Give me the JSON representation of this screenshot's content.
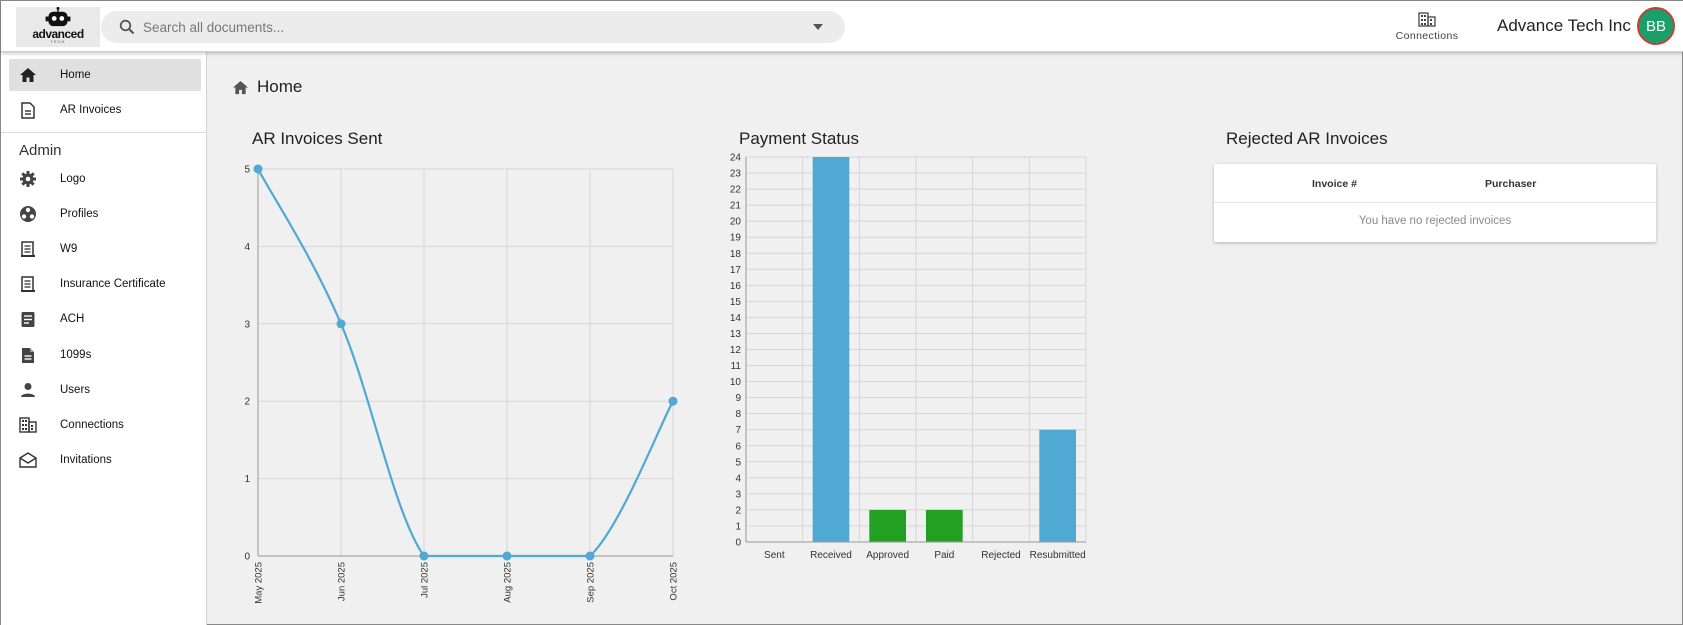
{
  "header": {
    "logo_text": "advanced",
    "logo_sub": "TECH",
    "search_placeholder": "Search all documents...",
    "connections_label": "Connections",
    "company": "Advance Tech Inc",
    "avatar_initials": "BB"
  },
  "sidebar": {
    "items": [
      {
        "label": "Home",
        "icon": "home-icon",
        "active": true
      },
      {
        "label": "AR Invoices",
        "icon": "document-icon",
        "active": false
      }
    ],
    "admin_heading": "Admin",
    "admin_items": [
      {
        "label": "Logo",
        "icon": "gear-icon"
      },
      {
        "label": "Profiles",
        "icon": "profiles-icon"
      },
      {
        "label": "W9",
        "icon": "form-icon"
      },
      {
        "label": "Insurance Certificate",
        "icon": "certificate-icon"
      },
      {
        "label": "ACH",
        "icon": "ach-document-icon"
      },
      {
        "label": "1099s",
        "icon": "1099-document-icon"
      },
      {
        "label": "Users",
        "icon": "user-icon"
      },
      {
        "label": "Connections",
        "icon": "building-icon"
      },
      {
        "label": "Invitations",
        "icon": "envelope-icon"
      }
    ]
  },
  "breadcrumb": {
    "label": "Home"
  },
  "cards": {
    "ar_title": "AR Invoices Sent",
    "payment_title": "Payment Status",
    "rejected_title": "Rejected AR Invoices"
  },
  "rejected_table": {
    "columns": [
      "Invoice #",
      "Purchaser"
    ],
    "empty_text": "You have no rejected invoices"
  },
  "chart_data": [
    {
      "type": "line",
      "title": "AR Invoices Sent",
      "x": [
        "May 2025",
        "Jun 2025",
        "Jul 2025",
        "Aug 2025",
        "Sep 2025",
        "Oct 2025"
      ],
      "series": [
        {
          "values": [
            5,
            3,
            0,
            0,
            0,
            2
          ],
          "color": "#4fa9d2"
        }
      ],
      "yticks": [
        0,
        1,
        2,
        3,
        4,
        5
      ],
      "ylim": [
        0,
        5
      ],
      "grid": true
    },
    {
      "type": "bar",
      "title": "Payment Status",
      "categories": [
        "Sent",
        "Received",
        "Approved",
        "Paid",
        "Rejected",
        "Resubmitted"
      ],
      "values": [
        0,
        24,
        2,
        2,
        0,
        7
      ],
      "colors": [
        "#4fa9d2",
        "#4fa9d2",
        "#22a022",
        "#22a022",
        "#4fa9d2",
        "#4fa9d2"
      ],
      "ylim": [
        0,
        24
      ],
      "ytick_step": 1,
      "grid": true
    }
  ]
}
